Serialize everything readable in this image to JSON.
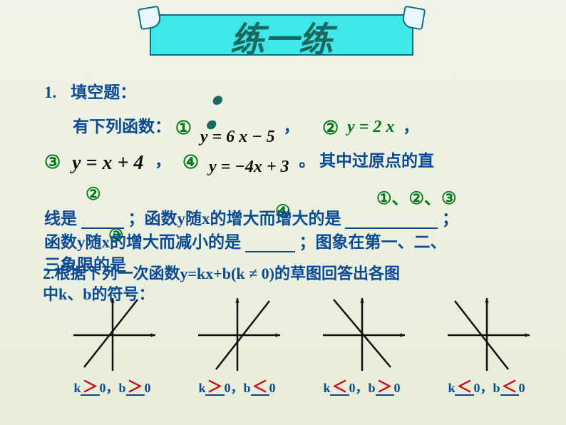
{
  "banner": {
    "title": "练一练"
  },
  "q1": {
    "label": "1.",
    "heading": "填空题：",
    "line2_prefix": "有下列函数：",
    "marks": {
      "m1": "①",
      "m2": "②",
      "m3": "③",
      "m4": "④"
    },
    "eqs": {
      "eq1": "y = 6 x − 5",
      "eq2": "y = 2 x",
      "eq3": "y = x + 4",
      "eq4": "y = −4x + 3"
    },
    "commas": {
      "c1": "，",
      "c2": "，",
      "c3": "，",
      "c4": "。"
    },
    "tail3": "其中过原点的直",
    "line4_a": "线是",
    "line4_b": "；函数y随x的增大而增大的是",
    "line4_c": "；",
    "line5_a": "函数y随x的增大而减小的是",
    "line5_b": "；图象在第一、二、",
    "line6": "三象限的是",
    "answers": {
      "a1": "②",
      "a2": "①、②、③",
      "a3": "④",
      "a4": "③"
    }
  },
  "q2": {
    "text_a": "2.根据下列一次函数y=kx+b(k ≠ 0)的草图回答出各图",
    "text_b": "中k、b的符号："
  },
  "graphs": {
    "axis_color": "#111111",
    "line_color": "#111111",
    "line_width": 2.5,
    "arrow": 7,
    "charts": [
      {
        "slope": "pos",
        "intercept": "pos"
      },
      {
        "slope": "pos",
        "intercept": "neg"
      },
      {
        "slope": "neg",
        "intercept": "pos"
      },
      {
        "slope": "neg",
        "intercept": "neg"
      }
    ]
  },
  "answers2": [
    {
      "k_rel": "＞",
      "b_rel": "＞"
    },
    {
      "k_rel": "＞",
      "b_rel": "＜"
    },
    {
      "k_rel": "＜",
      "b_rel": "＞"
    },
    {
      "k_rel": "＜",
      "b_rel": "＜"
    }
  ],
  "ans2_template": {
    "k": "k",
    "zero_comma": "0，b",
    "zero_end": "0"
  },
  "colors": {
    "bg_top": "#f0f4e8",
    "banner_bg": "#3fe8e8",
    "banner_border": "#0a7080",
    "banner_text": "#1a6860",
    "body_text": "#0b4a94",
    "green": "#067818",
    "sign_red": "#d00018"
  }
}
